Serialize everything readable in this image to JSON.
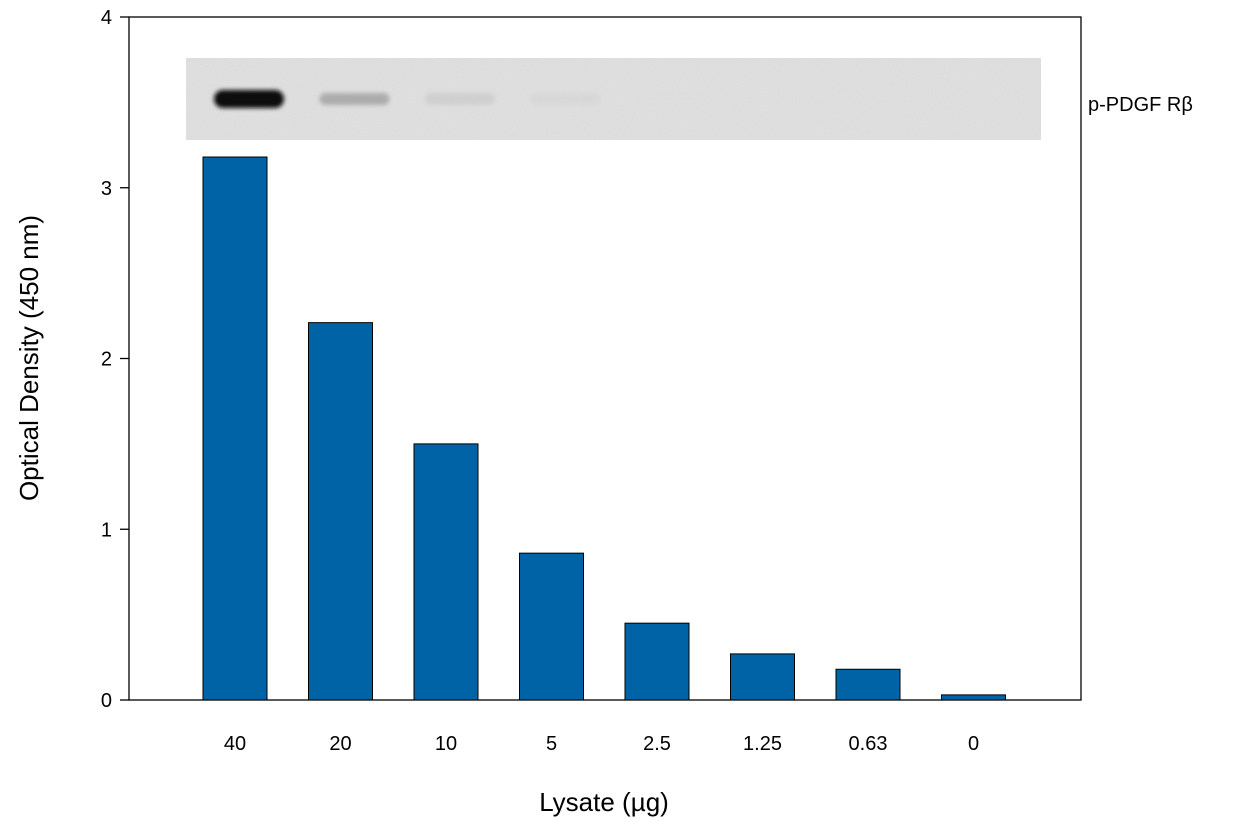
{
  "chart_data": {
    "type": "bar",
    "categories": [
      "40",
      "20",
      "10",
      "5",
      "2.5",
      "1.25",
      "0.63",
      "0"
    ],
    "values": [
      3.18,
      2.21,
      1.5,
      0.86,
      0.45,
      0.27,
      0.18,
      0.03
    ],
    "xlabel": "Lysate (µg)",
    "ylabel": "Optical Density (450 nm)",
    "ylim": [
      0,
      4
    ],
    "yticks": [
      "0",
      "1",
      "2",
      "3",
      "4"
    ],
    "bar_color": "#0063a6",
    "grid": false,
    "inset": {
      "type": "western-blot",
      "label": "p-PDGF Rβ",
      "band_intensity": [
        1.0,
        0.35,
        0.15,
        0.08,
        0.02,
        0.0,
        0.0,
        0.0
      ]
    }
  }
}
